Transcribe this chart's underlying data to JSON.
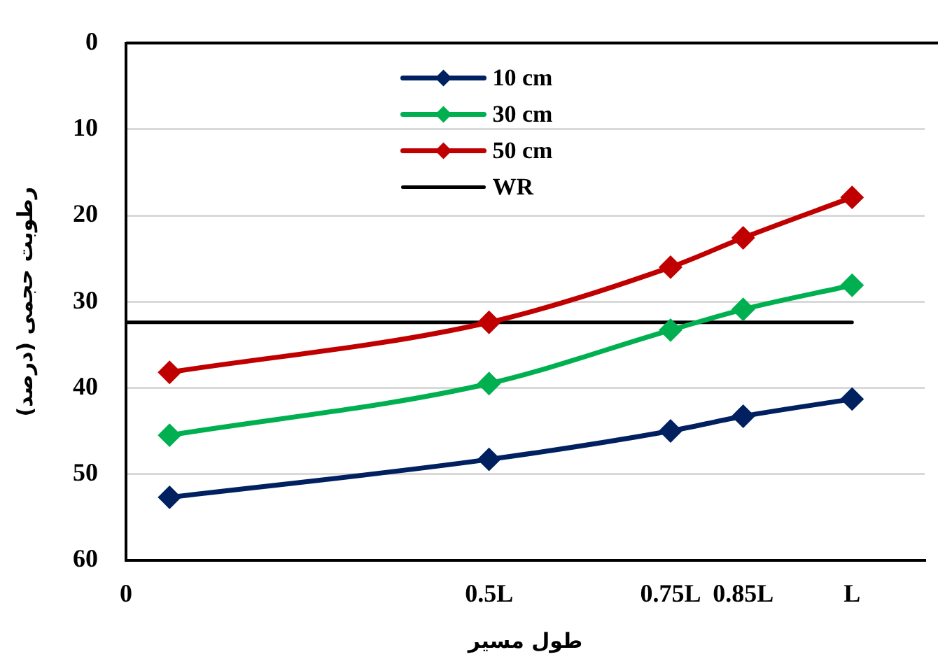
{
  "chart_data": {
    "type": "line",
    "xlabel": "طول مسیر",
    "ylabel": "رطوبت حجمی (درصد)",
    "x": [
      0.06,
      0.5,
      0.75,
      0.85,
      1
    ],
    "series": [
      {
        "name": "10 cm",
        "color": "#002060",
        "values": [
          52.7,
          48.3,
          45.0,
          43.3,
          41.3
        ]
      },
      {
        "name": "30 cm",
        "color": "#00b050",
        "values": [
          45.5,
          39.5,
          33.3,
          30.9,
          28.1
        ]
      },
      {
        "name": "50 cm",
        "color": "#c00000",
        "values": [
          38.2,
          32.4,
          26.0,
          22.6,
          17.9
        ]
      },
      {
        "name": "WR",
        "color": "#000000",
        "x": [
          0,
          1
        ],
        "values": [
          32.4,
          32.4
        ],
        "marker": "none"
      }
    ],
    "xlim": [
      0,
      1.1
    ],
    "xticks": [
      0,
      {
        "value": 0.5,
        "label": "0.5L"
      },
      {
        "value": 0.75,
        "label": "0.75L"
      },
      {
        "value": 0.85,
        "label": "0.85L"
      },
      {
        "value": 1,
        "label": "L"
      }
    ],
    "ylim": [
      60,
      0
    ],
    "yticks": [
      0,
      10,
      20,
      30,
      40,
      50,
      60
    ],
    "grid": "y",
    "legend": "top",
    "marker": "diamond",
    "line_style": "solid"
  }
}
